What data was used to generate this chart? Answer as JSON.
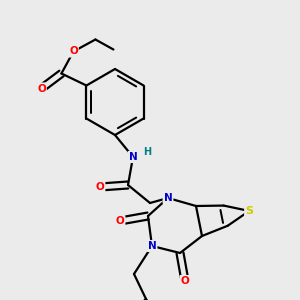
{
  "bg_color": "#ebebeb",
  "bond_color": "#000000",
  "atom_colors": {
    "O": "#ff0000",
    "N": "#0000cd",
    "S": "#cccc00",
    "H": "#008080",
    "C": "#000000"
  },
  "figsize": [
    3.0,
    3.0
  ],
  "dpi": 100
}
